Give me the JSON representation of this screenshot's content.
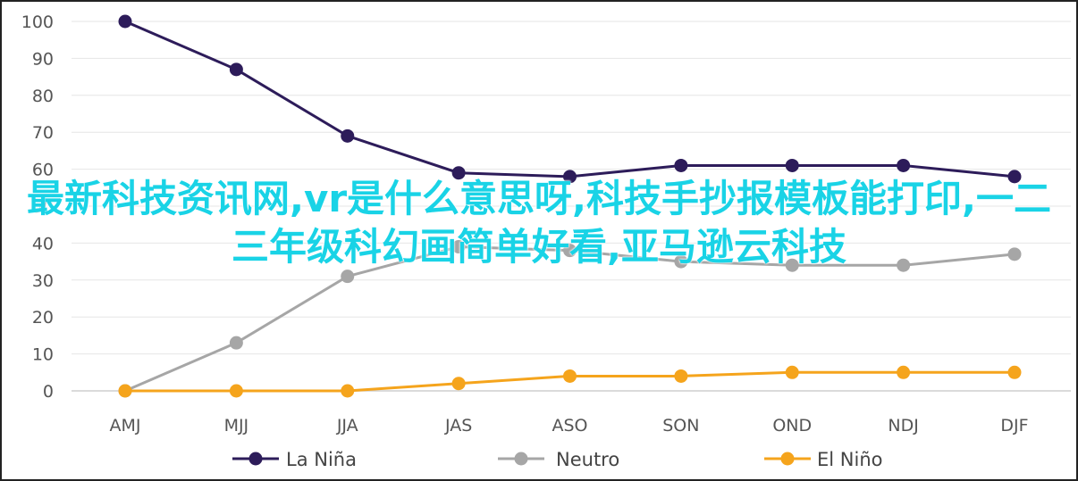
{
  "chart_data": {
    "type": "line",
    "categories": [
      "AMJ",
      "MJJ",
      "JJA",
      "JAS",
      "ASO",
      "SON",
      "OND",
      "NDJ",
      "DJF"
    ],
    "ylim": [
      0,
      100
    ],
    "yticks": [
      0,
      10,
      20,
      30,
      40,
      50,
      60,
      70,
      80,
      90,
      100
    ],
    "grid": true,
    "legend_position": "bottom",
    "series": [
      {
        "name": "La Niña",
        "color": "#2d1c5a",
        "values": [
          100,
          87,
          69,
          59,
          58,
          61,
          61,
          61,
          58
        ]
      },
      {
        "name": "Neutro",
        "color": "#a6a6a6",
        "values": [
          0,
          13,
          31,
          39,
          38,
          35,
          34,
          34,
          37
        ]
      },
      {
        "name": "El Niño",
        "color": "#f5a41c",
        "values": [
          0,
          0,
          0,
          2,
          4,
          4,
          5,
          5,
          5
        ]
      }
    ]
  },
  "overlay_text": "最新科技资讯网,vr是什么意思呀,科技手抄报模板能打印,一二三年级科幻画简单好看,亚马逊云科技"
}
